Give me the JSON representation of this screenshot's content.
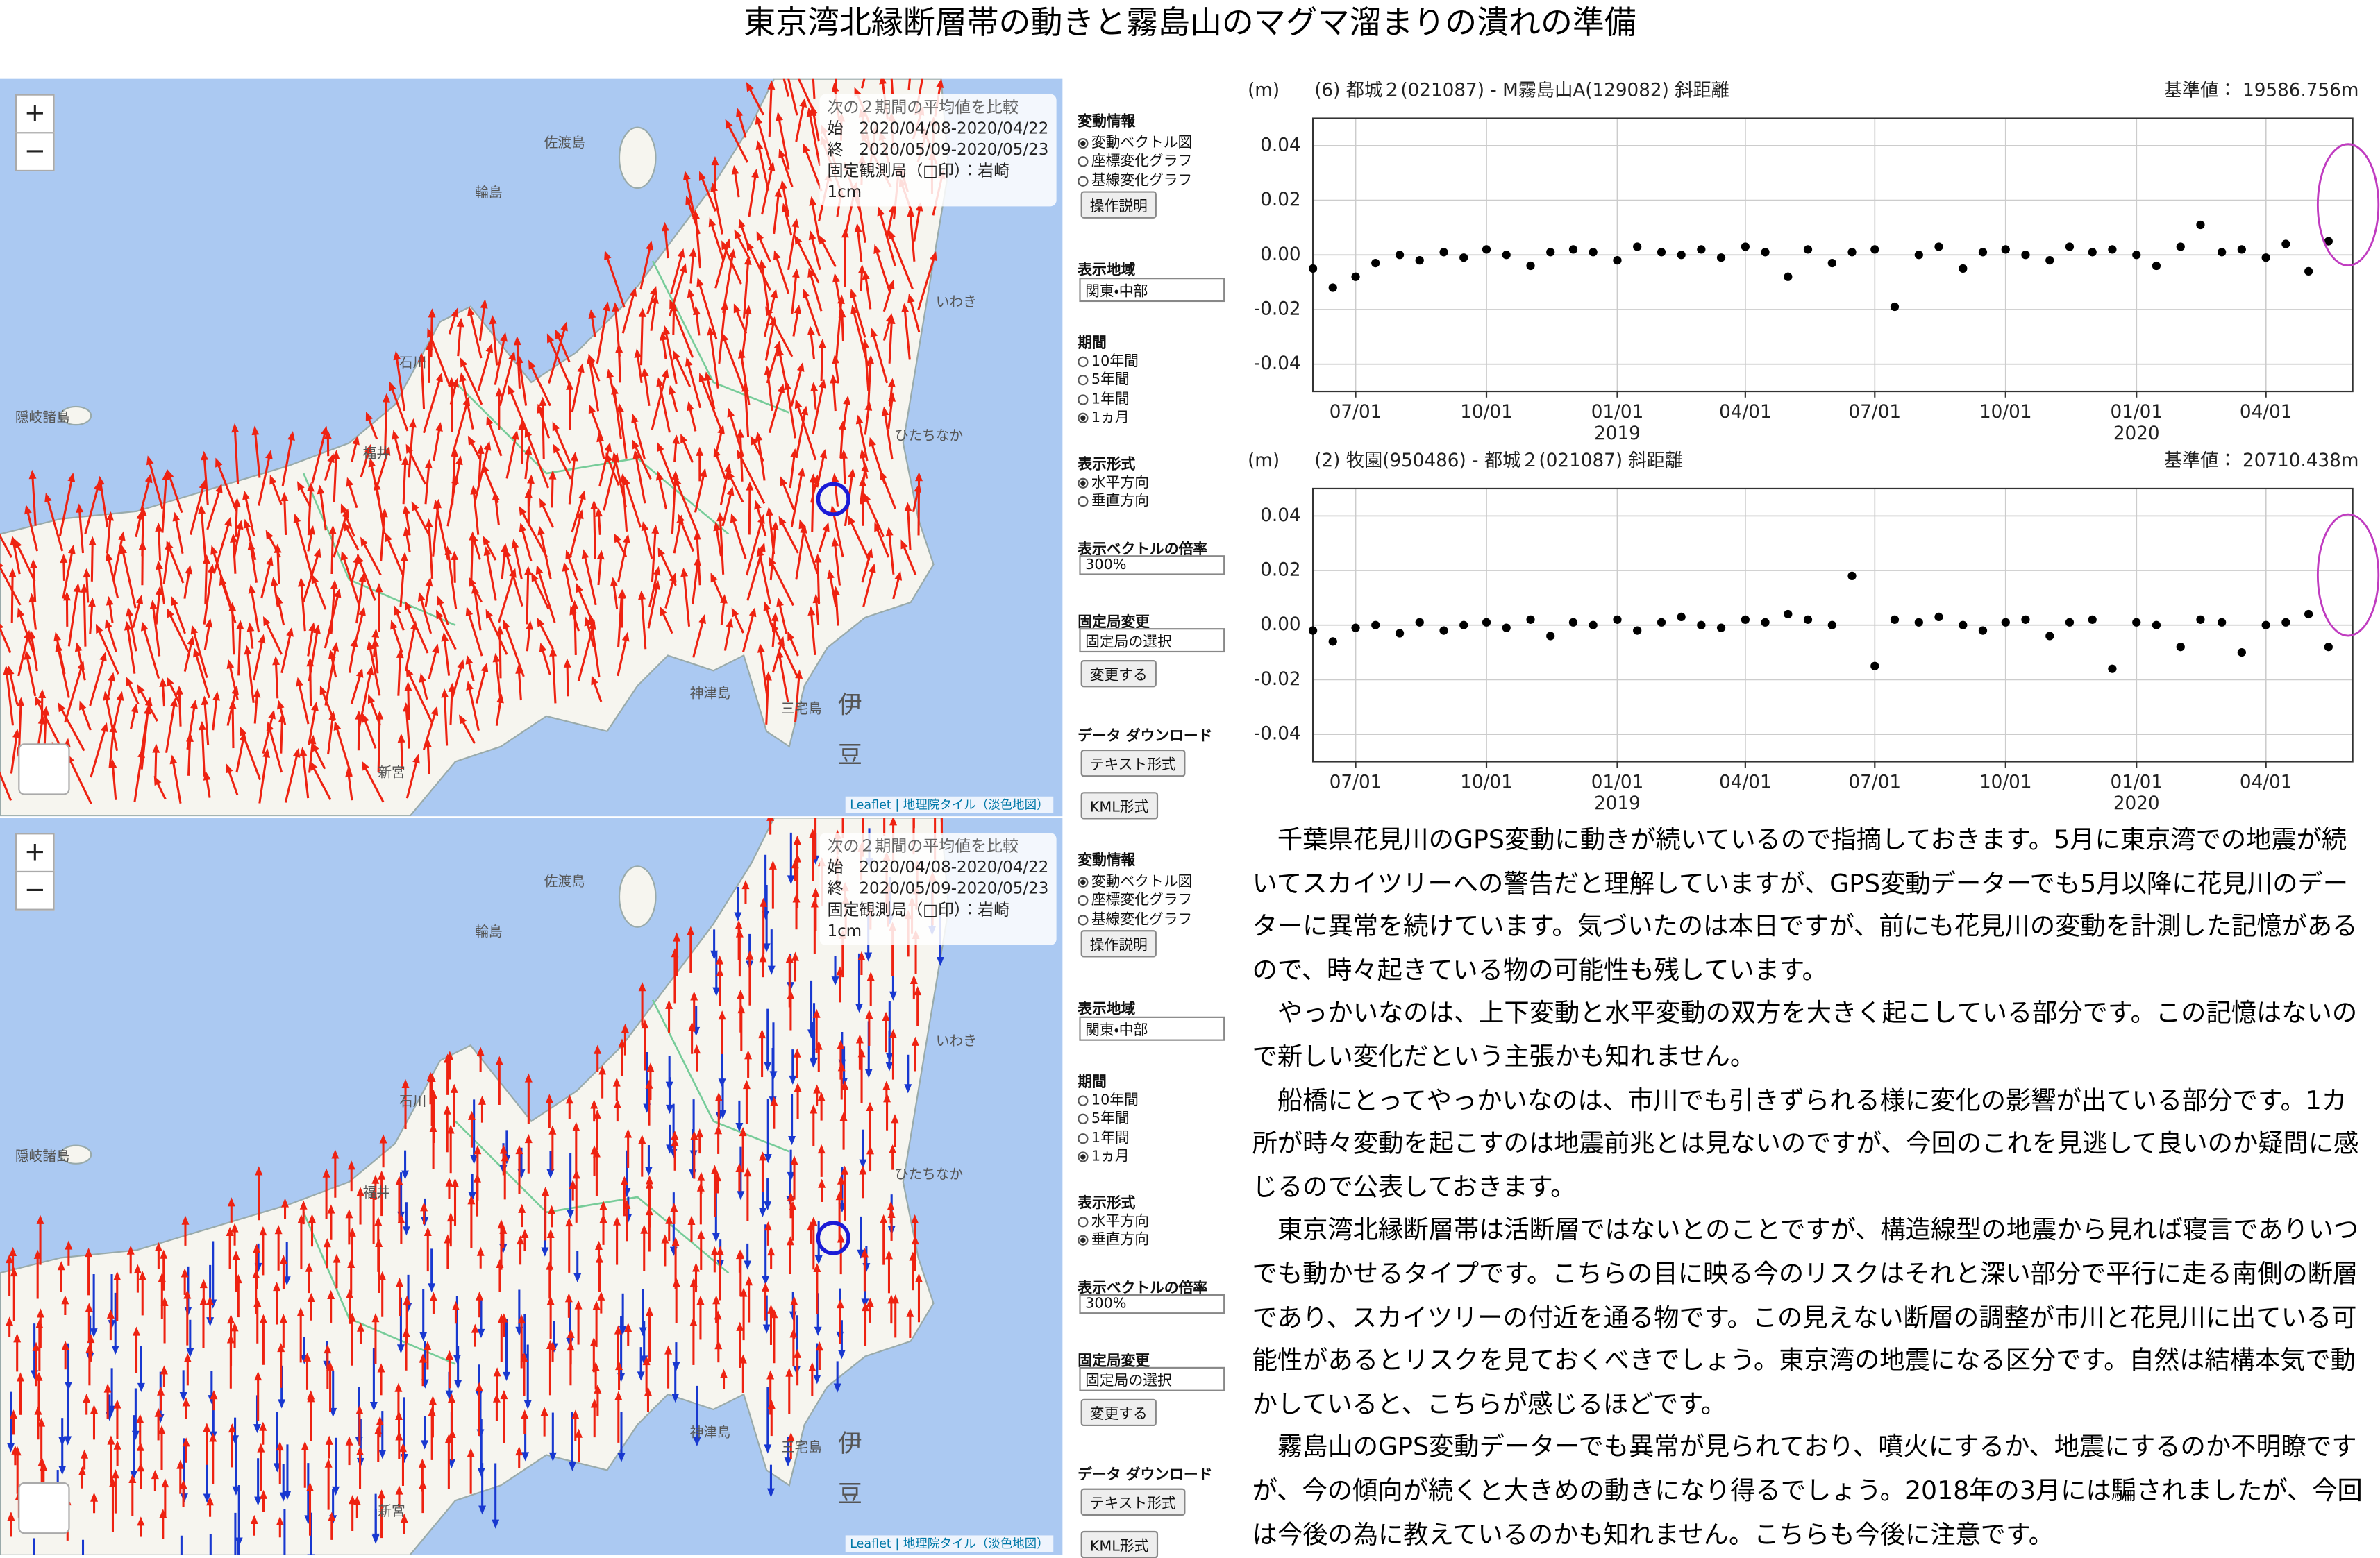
{
  "title": "東京湾北縁断層帯の動きと霧島山のマグマ溜まりの潰れの準備",
  "map_common": {
    "zoom_in": "+",
    "zoom_out": "−",
    "info_box": [
      "次の２期間の平均値を比較",
      "始　2020/04/08-2020/04/22",
      "終　2020/05/09-2020/05/23",
      "固定観測局（□印）：岩崎",
      "1cm"
    ],
    "attribution": "Leaflet | 地理院タイル（淡色地図）",
    "places": [
      "佐渡島",
      "輪島",
      "石川",
      "福井",
      "隠岐諸島",
      "いわき",
      "ひたちなか",
      "神津島",
      "三宅島",
      "伊",
      "豆",
      "新宮"
    ]
  },
  "panel": {
    "info_heading": "変動情報",
    "info_options": [
      "変動ベクトル図",
      "座標変化グラフ",
      "基線変化グラフ"
    ],
    "help_button": "操作説明",
    "region_heading": "表示地域",
    "region": "関東・中部",
    "period_heading": "期間",
    "period_options": [
      "10年間",
      "5年間",
      "1年間",
      "1ヵ月"
    ],
    "format_heading": "表示形式",
    "format_options": [
      "水平方向",
      "垂直方向"
    ],
    "scale_heading": "表示ベクトルの倍率",
    "scale": "300%",
    "fixed_heading": "固定局変更",
    "fixed_select": "固定局の選択",
    "change_button": "変更する",
    "download_heading": "データ ダウンロード",
    "text_button": "テキスト形式",
    "kml_button": "KML形式"
  },
  "maps": [
    {
      "info_selected": 0,
      "period_selected": 3,
      "format_selected": 0
    },
    {
      "info_selected": 0,
      "period_selected": 3,
      "format_selected": 1
    }
  ],
  "chart_data": [
    {
      "type": "scatter",
      "unit_label": "(m)",
      "title": "(6) 都城２(021087) - M霧島山A(129082) 斜距離",
      "reference": "基準値： 19586.756m",
      "color": "#000000",
      "grid": true,
      "x": [
        "2018-06-01",
        "2018-06-15",
        "2018-07-01",
        "2018-07-15",
        "2018-08-01",
        "2018-08-15",
        "2018-09-01",
        "2018-09-15",
        "2018-10-01",
        "2018-10-15",
        "2018-11-01",
        "2018-11-15",
        "2018-12-01",
        "2018-12-15",
        "2019-01-01",
        "2019-01-15",
        "2019-02-01",
        "2019-02-15",
        "2019-03-01",
        "2019-03-15",
        "2019-04-01",
        "2019-04-15",
        "2019-05-01",
        "2019-05-15",
        "2019-06-01",
        "2019-06-15",
        "2019-07-01",
        "2019-07-15",
        "2019-08-01",
        "2019-08-15",
        "2019-09-01",
        "2019-09-15",
        "2019-10-01",
        "2019-10-15",
        "2019-11-01",
        "2019-11-15",
        "2019-12-01",
        "2019-12-15",
        "2020-01-01",
        "2020-01-15",
        "2020-02-01",
        "2020-02-15",
        "2020-03-01",
        "2020-03-15",
        "2020-04-01",
        "2020-04-15",
        "2020-05-01",
        "2020-05-15"
      ],
      "values": [
        -0.005,
        -0.012,
        -0.008,
        -0.003,
        0.0,
        -0.002,
        0.001,
        -0.001,
        0.002,
        0.0,
        -0.004,
        0.001,
        0.002,
        0.001,
        -0.002,
        0.003,
        0.001,
        0.0,
        0.002,
        -0.001,
        0.003,
        0.001,
        -0.008,
        0.002,
        -0.003,
        0.001,
        0.002,
        -0.019,
        0.0,
        0.003,
        -0.005,
        0.001,
        0.002,
        0.0,
        -0.002,
        0.003,
        0.001,
        0.002,
        0.0,
        -0.004,
        0.003,
        0.011,
        0.001,
        0.002,
        -0.001,
        0.004,
        -0.006,
        0.005
      ],
      "xlim": [
        "2018-06-01",
        "2020-06-01"
      ],
      "ylim": [
        -0.05,
        0.05
      ],
      "xticks": [
        {
          "value": "2018-07-01",
          "label": "07/01"
        },
        {
          "value": "2018-10-01",
          "label": "10/01"
        },
        {
          "value": "2019-01-01",
          "label": "01/01"
        },
        {
          "value": "2019-04-01",
          "label": "04/01"
        },
        {
          "value": "2019-07-01",
          "label": "07/01"
        },
        {
          "value": "2019-10-01",
          "label": "10/01"
        },
        {
          "value": "2020-01-01",
          "label": "01/01"
        },
        {
          "value": "2020-04-01",
          "label": "04/01"
        }
      ],
      "year_labels": [
        {
          "value": "2019-01-01",
          "label": "2019"
        },
        {
          "value": "2020-01-01",
          "label": "2020"
        }
      ],
      "yticks": [
        0.04,
        0.02,
        {
          "value": 0,
          "label": "0.00"
        },
        -0.02,
        -0.04
      ]
    },
    {
      "type": "scatter",
      "unit_label": "(m)",
      "title": "(2) 牧園(950486) - 都城２(021087) 斜距離",
      "reference": "基準値： 20710.438m",
      "color": "#000000",
      "grid": true,
      "x": [
        "2018-06-01",
        "2018-06-15",
        "2018-07-01",
        "2018-07-15",
        "2018-08-01",
        "2018-08-15",
        "2018-09-01",
        "2018-09-15",
        "2018-10-01",
        "2018-10-15",
        "2018-11-01",
        "2018-11-15",
        "2018-12-01",
        "2018-12-15",
        "2019-01-01",
        "2019-01-15",
        "2019-02-01",
        "2019-02-15",
        "2019-03-01",
        "2019-03-15",
        "2019-04-01",
        "2019-04-15",
        "2019-05-01",
        "2019-05-15",
        "2019-06-01",
        "2019-06-15",
        "2019-07-01",
        "2019-07-15",
        "2019-08-01",
        "2019-08-15",
        "2019-09-01",
        "2019-09-15",
        "2019-10-01",
        "2019-10-15",
        "2019-11-01",
        "2019-11-15",
        "2019-12-01",
        "2019-12-15",
        "2020-01-01",
        "2020-01-15",
        "2020-02-01",
        "2020-02-15",
        "2020-03-01",
        "2020-03-15",
        "2020-04-01",
        "2020-04-15",
        "2020-05-01",
        "2020-05-15"
      ],
      "values": [
        -0.002,
        -0.006,
        -0.001,
        0.0,
        -0.003,
        0.001,
        -0.002,
        0.0,
        0.001,
        -0.001,
        0.002,
        -0.004,
        0.001,
        0.0,
        0.002,
        -0.002,
        0.001,
        0.003,
        0.0,
        -0.001,
        0.002,
        0.001,
        0.004,
        0.002,
        0.0,
        0.018,
        -0.015,
        0.002,
        0.001,
        0.003,
        0.0,
        -0.002,
        0.001,
        0.002,
        -0.004,
        0.001,
        0.002,
        -0.016,
        0.001,
        0.0,
        -0.008,
        0.002,
        0.001,
        -0.01,
        0.0,
        0.001,
        0.004,
        -0.008
      ],
      "xlim": [
        "2018-06-01",
        "2020-06-01"
      ],
      "ylim": [
        -0.05,
        0.05
      ],
      "xticks": [
        {
          "value": "2018-07-01",
          "label": "07/01"
        },
        {
          "value": "2018-10-01",
          "label": "10/01"
        },
        {
          "value": "2019-01-01",
          "label": "01/01"
        },
        {
          "value": "2019-04-01",
          "label": "04/01"
        },
        {
          "value": "2019-07-01",
          "label": "07/01"
        },
        {
          "value": "2019-10-01",
          "label": "10/01"
        },
        {
          "value": "2020-01-01",
          "label": "01/01"
        },
        {
          "value": "2020-04-01",
          "label": "04/01"
        }
      ],
      "year_labels": [
        {
          "value": "2019-01-01",
          "label": "2019"
        },
        {
          "value": "2020-01-01",
          "label": "2020"
        }
      ],
      "yticks": [
        0.04,
        0.02,
        {
          "value": 0,
          "label": "0.00"
        },
        -0.02,
        -0.04
      ]
    }
  ],
  "article": {
    "paragraphs": [
      "千葉県花見川のGPS変動に動きが続いているので指摘しておきます。5月に東京湾での地震が続いてスカイツリーへの警告だと理解していますが、GPS変動データーでも5月以降に花見川のデーターに異常を続けています。気づいたのは本日ですが、前にも花見川の変動を計測した記憶があるので、時々起きている物の可能性も残しています。",
      "やっかいなのは、上下変動と水平変動の双方を大きく起こしている部分です。この記憶はないので新しい変化だという主張かも知れません。",
      "船橋にとってやっかいなのは、市川でも引きずられる様に変化の影響が出ている部分です。1カ所が時々変動を起こすのは地震前兆とは見ないのですが、今回のこれを見逃して良いのか疑問に感じるので公表しておきます。",
      "東京湾北縁断層帯は活断層ではないとのことですが、構造線型の地震から見れば寝言でありいつでも動かせるタイプです。こちらの目に映る今のリスクはそれと深い部分で平行に走る南側の断層であり、スカイツリーの付近を通る物です。この見えない断層の調整が市川と花見川に出ている可能性があるとリスクを見ておくべきでしょう。東京湾の地震になる区分です。自然は結構本気で動かしていると、こちらが感じるほどです。",
      "霧島山のGPS変動データーでも異常が見られており、噴火にするか、地震にするのか不明瞭ですが、今の傾向が続くと大きめの動きになり得るでしょう。2018年の3月には騙されましたが、今回は今後の為に教えているのかも知れません。こちらも今後に注意です。"
    ]
  }
}
